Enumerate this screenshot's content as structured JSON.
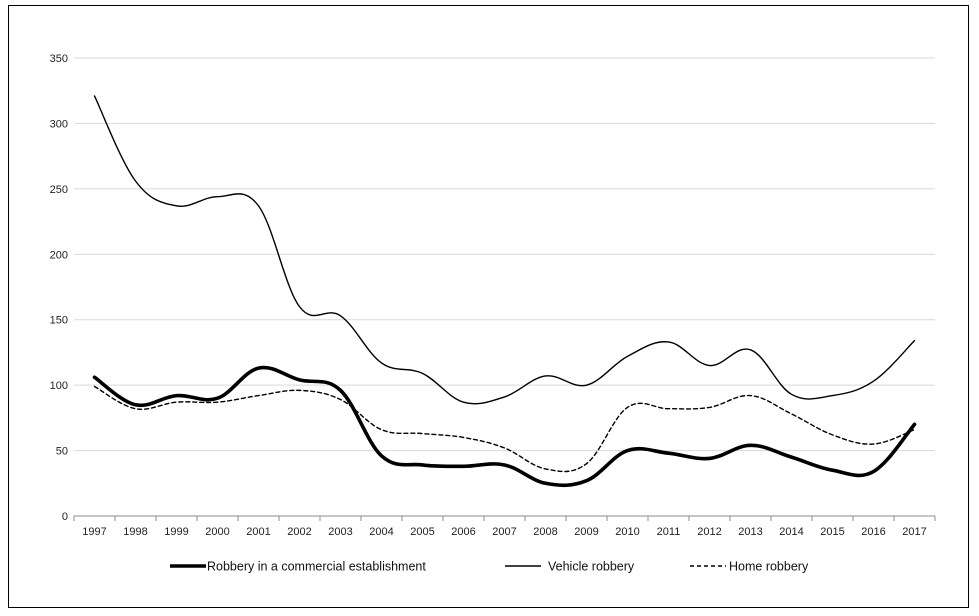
{
  "chart_data": {
    "type": "line",
    "title": "",
    "xlabel": "",
    "ylabel": "",
    "x": [
      1997,
      1998,
      1999,
      2000,
      2001,
      2002,
      2003,
      2004,
      2005,
      2006,
      2007,
      2008,
      2009,
      2010,
      2011,
      2012,
      2013,
      2014,
      2015,
      2016,
      2017
    ],
    "x_tick_labels": [
      "1997",
      "1998",
      "1999",
      "2000",
      "2001",
      "2002",
      "2003",
      "2004",
      "2005",
      "2006",
      "2007",
      "2008",
      "2009",
      "2010",
      "2011",
      "2012",
      "2013",
      "2014",
      "2015",
      "2016",
      "2017"
    ],
    "ylim": [
      0,
      350
    ],
    "y_ticks": [
      0,
      50,
      100,
      150,
      200,
      250,
      300,
      350
    ],
    "y_tick_labels": [
      "0",
      "50",
      "100",
      "150",
      "200",
      "250",
      "300",
      "350"
    ],
    "grid": true,
    "legend_position": "bottom",
    "series": [
      {
        "name": "Robbery in a commercial establishment",
        "style": "thick-solid",
        "color": "#000000",
        "values": [
          106,
          85,
          92,
          90,
          113,
          104,
          96,
          46,
          39,
          38,
          39,
          25,
          27,
          50,
          48,
          44,
          54,
          45,
          35,
          34,
          70
        ]
      },
      {
        "name": "Vehicle robbery",
        "style": "thin-solid",
        "color": "#000000",
        "values": [
          321,
          256,
          237,
          244,
          237,
          160,
          153,
          117,
          109,
          87,
          91,
          107,
          100,
          122,
          133,
          115,
          127,
          93,
          92,
          103,
          134
        ]
      },
      {
        "name": "Home robbery",
        "style": "dashed",
        "color": "#000000",
        "values": [
          99,
          82,
          87,
          87,
          92,
          96,
          89,
          66,
          63,
          60,
          52,
          36,
          40,
          83,
          82,
          83,
          92,
          78,
          62,
          55,
          66
        ]
      }
    ]
  }
}
